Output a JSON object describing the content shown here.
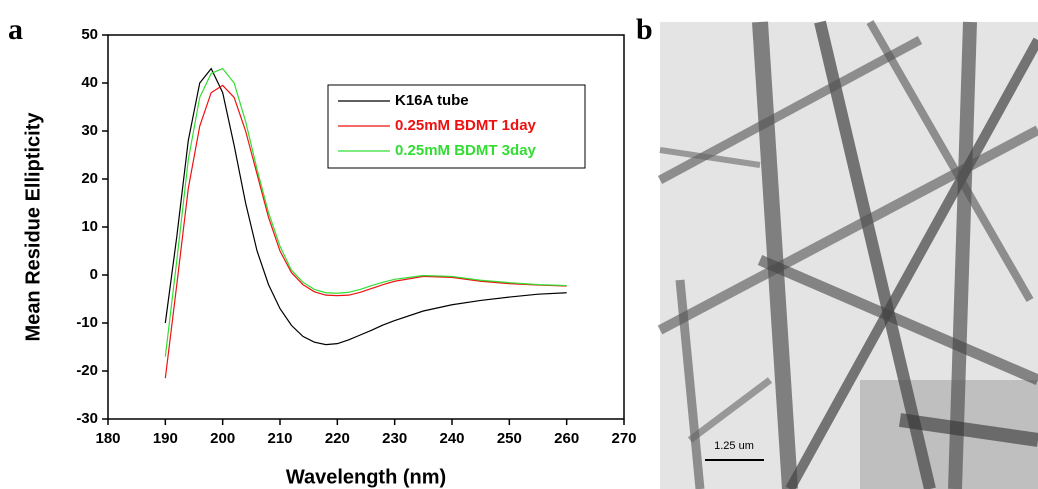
{
  "panel_labels": [
    "a",
    "b"
  ],
  "chart_data": {
    "type": "line",
    "xlabel": "Wavelength (nm)",
    "ylabel": "Mean Residue Ellipticity",
    "x": [
      190,
      192,
      194,
      196,
      198,
      200,
      202,
      204,
      206,
      208,
      210,
      212,
      214,
      216,
      218,
      220,
      222,
      224,
      226,
      228,
      230,
      235,
      240,
      245,
      250,
      255,
      260
    ],
    "series": [
      {
        "name": "K16A tube",
        "color": "#000000",
        "values": [
          -10,
          8,
          28,
          40,
          43,
          38,
          27,
          15,
          5,
          -2,
          -7,
          -10.5,
          -12.8,
          -14,
          -14.5,
          -14.3,
          -13.5,
          -12.5,
          -11.5,
          -10.4,
          -9.5,
          -7.5,
          -6.2,
          -5.3,
          -4.6,
          -4,
          -3.7
        ]
      },
      {
        "name": "0.25mM BDMT 1day",
        "color": "#ee1111",
        "values": [
          -21.5,
          -2,
          18,
          31,
          38,
          39.5,
          37,
          30,
          21,
          12,
          5,
          0.5,
          -2,
          -3.5,
          -4.2,
          -4.3,
          -4.2,
          -3.6,
          -2.8,
          -2,
          -1.3,
          -0.3,
          -0.5,
          -1.3,
          -1.8,
          -2.1,
          -2.3
        ]
      },
      {
        "name": "0.25mM BDMT 3day",
        "color": "#33dd33",
        "values": [
          -17,
          3,
          24,
          37,
          42,
          43,
          40,
          32,
          22,
          13,
          6,
          1,
          -1.5,
          -3,
          -3.7,
          -3.8,
          -3.6,
          -3,
          -2.2,
          -1.5,
          -0.9,
          -0.1,
          -0.3,
          -1.1,
          -1.6,
          -2,
          -2.2
        ]
      }
    ],
    "xlim": [
      180,
      270
    ],
    "xticks": [
      180,
      190,
      200,
      210,
      220,
      230,
      240,
      250,
      260,
      270
    ],
    "ylim": [
      -30,
      50
    ],
    "yticks": [
      -30,
      -20,
      -10,
      0,
      10,
      20,
      30,
      40,
      50
    ]
  },
  "micrograph": {
    "scale_bar": "1.25 um"
  }
}
